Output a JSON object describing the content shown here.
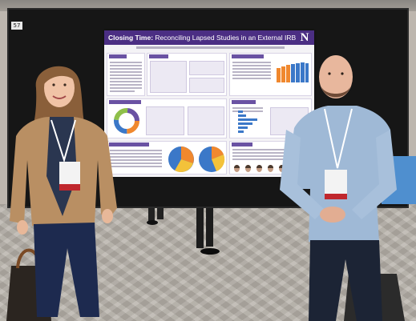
{
  "photo": {
    "booth_number": "57",
    "poster": {
      "title_prefix": "Closing Time:",
      "title_rest": " Reconciling Lapsed Studies in an External IRB Portfolio",
      "logo_letter": "N",
      "section_numbers": [
        "1",
        "2",
        "3",
        "4",
        "5"
      ],
      "colors": {
        "header": "#4b2e83",
        "accent": "#6a52a3",
        "pie_orange": "#f0882e",
        "pie_blue": "#3b78c8",
        "pie_yellow": "#f3c23a"
      }
    },
    "people": [
      {
        "description_icon": "woman-presenter"
      },
      {
        "description_icon": "man-presenter"
      }
    ]
  }
}
